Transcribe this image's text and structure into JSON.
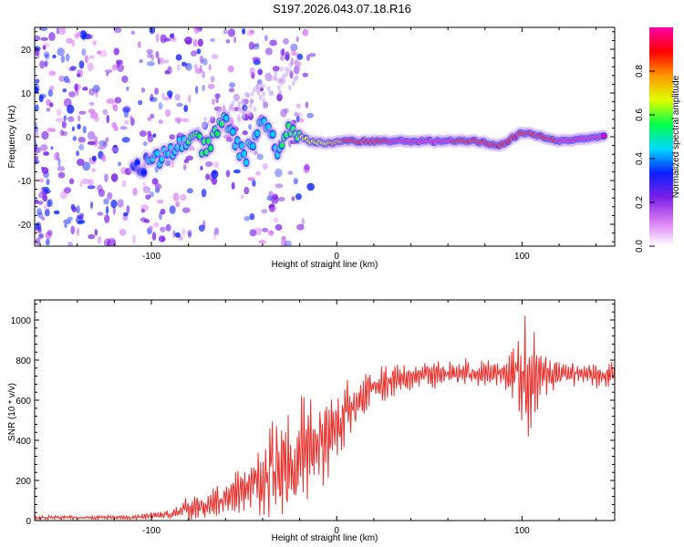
{
  "title": "S197.2026.043.07.18.R16",
  "colors": {
    "snr_line": "#e8302c",
    "spec_scatter": "#7a2be0",
    "spec_core": "#ff1a00",
    "axis": "#000000",
    "background": "#ffffff"
  },
  "chart_data": [
    {
      "type": "heatmap",
      "title": "S197.2026.043.07.18.R16",
      "xlabel": "Height of straight line (km)",
      "ylabel": "Frequency (Hz)",
      "xlim": [
        -163,
        150
      ],
      "ylim": [
        -25,
        25
      ],
      "xticks": [
        -100,
        0,
        100
      ],
      "yticks": [
        -20,
        -10,
        0,
        10,
        20
      ],
      "xtick_labels": [
        "-100",
        "0",
        "100"
      ],
      "ytick_labels": [
        "-20",
        "-10",
        "0",
        "10",
        "20"
      ],
      "colorbar": {
        "label": "Normalized spectral amplitude",
        "range": [
          0,
          1
        ],
        "ticks": [
          0.0,
          0.2,
          0.4,
          0.6,
          0.8
        ],
        "tick_labels": [
          "0.0",
          "0.2",
          "0.4",
          "0.6",
          "0.8"
        ],
        "stops": [
          "#ffffff",
          "#d97cf5",
          "#7b20e6",
          "#0a20ff",
          "#00d8ff",
          "#00ff4a",
          "#dfff00",
          "#ff9900",
          "#ff0000",
          "#ff00aa"
        ]
      },
      "ridge_points": [
        {
          "x": -110,
          "y": -7,
          "a": 0.35
        },
        {
          "x": -100,
          "y": -6,
          "a": 0.4
        },
        {
          "x": -90,
          "y": -4,
          "a": 0.45
        },
        {
          "x": -80,
          "y": 0,
          "a": 0.5
        },
        {
          "x": -70,
          "y": -3,
          "a": 0.5
        },
        {
          "x": -60,
          "y": 4,
          "a": 0.5
        },
        {
          "x": -50,
          "y": -5,
          "a": 0.45
        },
        {
          "x": -40,
          "y": 4,
          "a": 0.45
        },
        {
          "x": -30,
          "y": -4,
          "a": 0.5
        },
        {
          "x": -25,
          "y": 2,
          "a": 0.55
        },
        {
          "x": -15,
          "y": -1,
          "a": 0.65
        },
        {
          "x": -5,
          "y": -1.5,
          "a": 0.7
        },
        {
          "x": 5,
          "y": -1,
          "a": 0.85
        },
        {
          "x": 30,
          "y": -1,
          "a": 0.95
        },
        {
          "x": 60,
          "y": -1,
          "a": 0.95
        },
        {
          "x": 75,
          "y": -1,
          "a": 0.9
        },
        {
          "x": 88,
          "y": -2,
          "a": 0.9
        },
        {
          "x": 100,
          "y": 1,
          "a": 0.85
        },
        {
          "x": 120,
          "y": -1,
          "a": 0.95
        },
        {
          "x": 145,
          "y": 0,
          "a": 0.95
        }
      ]
    },
    {
      "type": "line",
      "xlabel": "Height of straight line (km)",
      "ylabel": "SNR (10 * v/v)",
      "xlim": [
        -163,
        150
      ],
      "ylim": [
        0,
        1100
      ],
      "xticks": [
        -100,
        0,
        100
      ],
      "yticks": [
        0,
        200,
        400,
        600,
        800,
        1000
      ],
      "xtick_labels": [
        "-100",
        "0",
        "100"
      ],
      "ytick_labels": [
        "0",
        "200",
        "400",
        "600",
        "800",
        "1000"
      ],
      "series": [
        {
          "name": "SNR",
          "envelope": [
            {
              "x": -163,
              "base": 15,
              "amp": 10
            },
            {
              "x": -110,
              "base": 15,
              "amp": 12
            },
            {
              "x": -90,
              "base": 30,
              "amp": 30
            },
            {
              "x": -75,
              "base": 70,
              "amp": 80
            },
            {
              "x": -60,
              "base": 100,
              "amp": 90
            },
            {
              "x": -45,
              "base": 180,
              "amp": 150
            },
            {
              "x": -35,
              "base": 260,
              "amp": 280
            },
            {
              "x": -25,
              "base": 300,
              "amp": 330
            },
            {
              "x": -12,
              "base": 380,
              "amp": 300
            },
            {
              "x": 0,
              "base": 470,
              "amp": 200
            },
            {
              "x": 10,
              "base": 580,
              "amp": 150
            },
            {
              "x": 20,
              "base": 670,
              "amp": 110
            },
            {
              "x": 35,
              "base": 720,
              "amp": 80
            },
            {
              "x": 60,
              "base": 730,
              "amp": 75
            },
            {
              "x": 90,
              "base": 740,
              "amp": 70
            },
            {
              "x": 98,
              "base": 730,
              "amp": 200
            },
            {
              "x": 104,
              "base": 720,
              "amp": 340
            },
            {
              "x": 110,
              "base": 730,
              "amp": 120
            },
            {
              "x": 120,
              "base": 730,
              "amp": 70
            },
            {
              "x": 150,
              "base": 730,
              "amp": 70
            }
          ]
        }
      ]
    }
  ]
}
